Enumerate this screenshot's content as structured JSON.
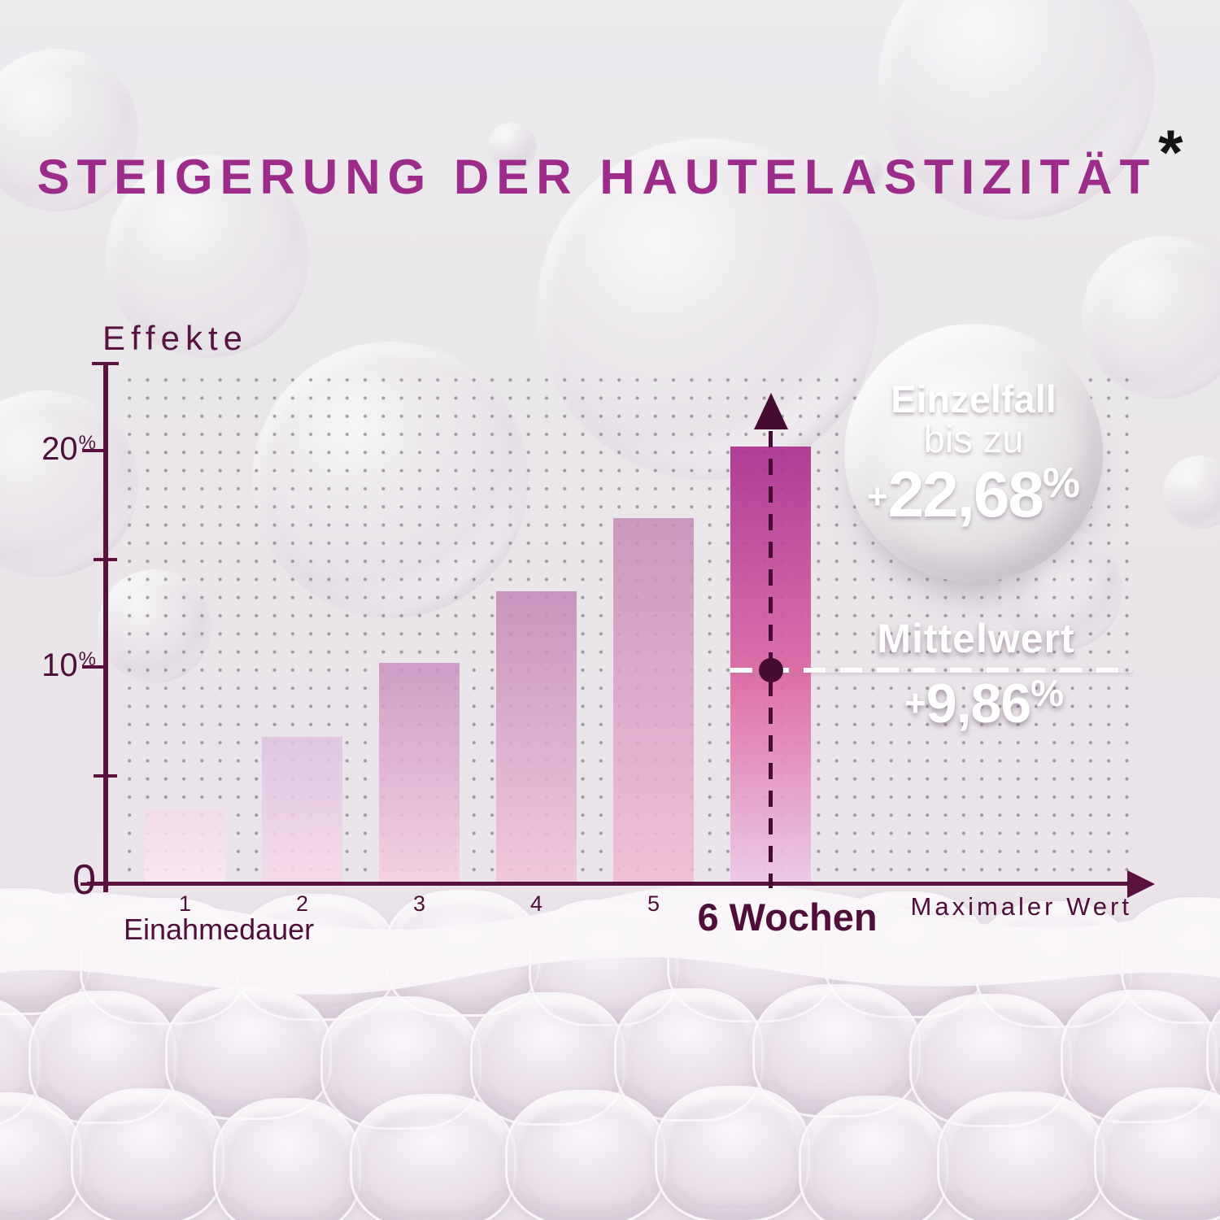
{
  "title": {
    "text": "STEIGERUNG DER HAUTELASTIZITÄT",
    "footnote_marker": "*"
  },
  "y_axis": {
    "label": "Effekte",
    "tick_20": "20",
    "tick_10": "10",
    "tick_0": "0",
    "percent": "%"
  },
  "x_axis": {
    "duration_label": "Einahmedauer",
    "week_label": "6 Wochen",
    "end_label": "Maximaler Wert"
  },
  "einzelfall_bubble": {
    "line1": "Einzelfall",
    "line2": "bis zu",
    "plus": "+",
    "value": "22,68",
    "percent": "%"
  },
  "mittelwert": {
    "label": "Mittelwert",
    "plus": "+",
    "value": "9,86",
    "percent": "%"
  },
  "chart_data": {
    "type": "bar",
    "title": "Steigerung der Hautelastizität",
    "categories": [
      "1",
      "2",
      "3",
      "4",
      "5",
      "6 Wochen"
    ],
    "values": [
      3.4,
      6.8,
      10.2,
      13.5,
      16.9,
      20.2
    ],
    "xlabel": "Einahmedauer",
    "ylabel": "Effekte",
    "x_axis_end_label": "Maximaler Wert",
    "ylim": [
      0,
      24
    ],
    "yticks_major": [
      0,
      10,
      20
    ],
    "yticks_minor": [
      5,
      15
    ],
    "grid": "dotted",
    "legend": "none",
    "annotations": {
      "einzelfall_max_percent": 22.68,
      "mittelwert_percent": 9.86,
      "highlight_bar_index": 5
    },
    "bar_colors": [
      [
        "#f5d9e8",
        "#fbeaf3"
      ],
      [
        "#dfc2df",
        "#f6d9e9"
      ],
      [
        "#cb93c1",
        "#f5d0e1"
      ],
      [
        "#c489b8",
        "#f2c5da"
      ],
      [
        "#c88db9",
        "#f1bbd4"
      ],
      [
        "#ab3190",
        "#de6ba6",
        "#ecc9e9"
      ]
    ],
    "accent_dark": "#4f0f3a",
    "accent_magenta": "#9c2b8a",
    "marker_color": "#470c33"
  }
}
